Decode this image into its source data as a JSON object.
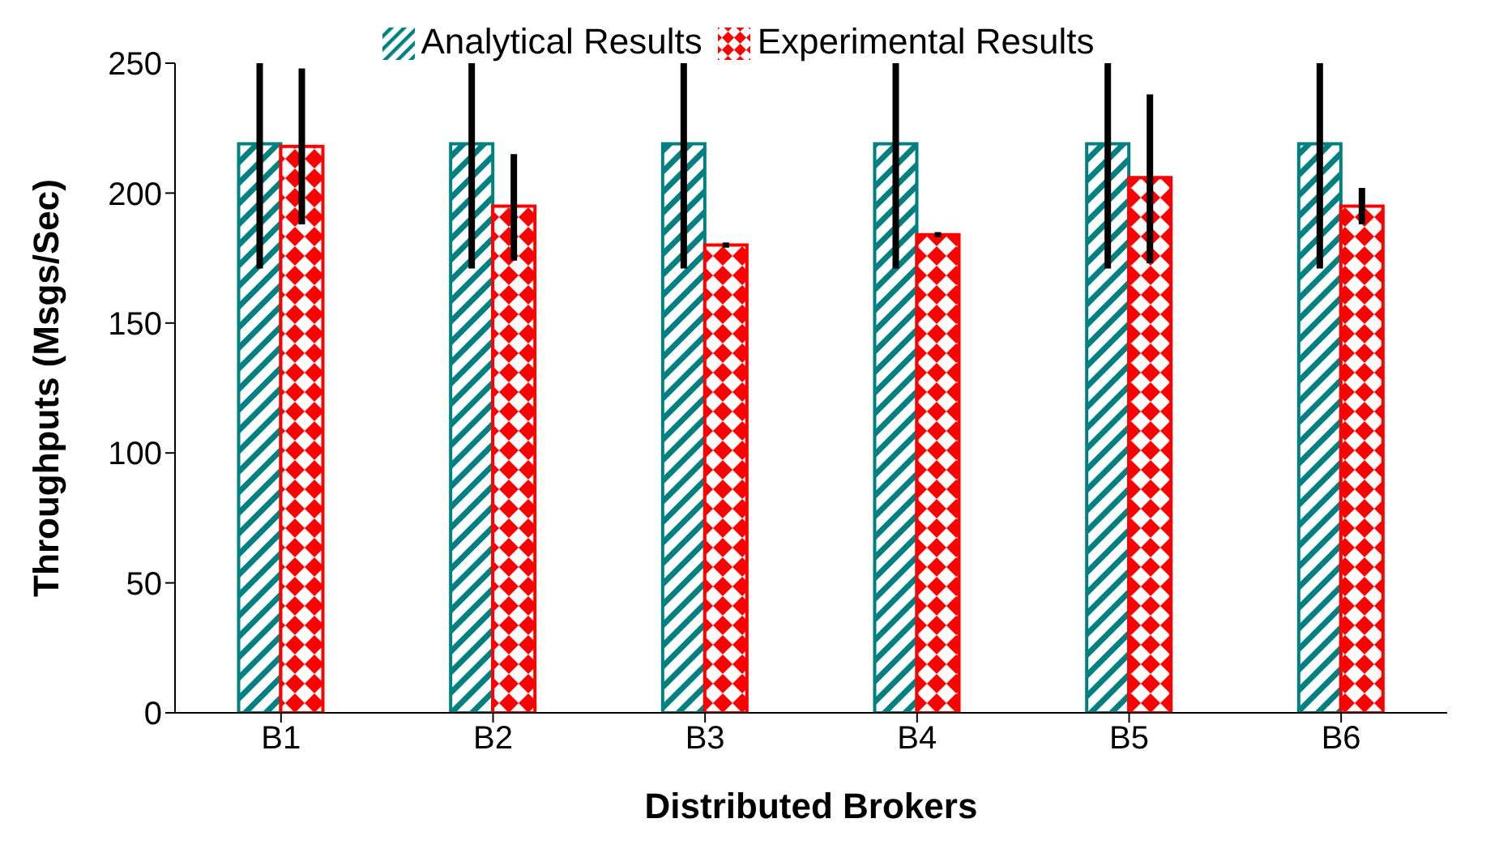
{
  "chart_data": {
    "type": "bar",
    "xlabel": "Distributed Brokers",
    "ylabel": "Throughputs (Msgs/Sec)",
    "categories": [
      "B1",
      "B2",
      "B3",
      "B4",
      "B5",
      "B6"
    ],
    "series": [
      {
        "name": "Analytical Results",
        "color": "#008080",
        "values": [
          219,
          219,
          219,
          219,
          219,
          219
        ],
        "errors": [
          [
            171,
            250
          ],
          [
            171,
            250
          ],
          [
            171,
            250
          ],
          [
            171,
            250
          ],
          [
            171,
            250
          ],
          [
            171,
            250
          ]
        ]
      },
      {
        "name": "Experimental Results",
        "color": "#ff0000",
        "values": [
          218,
          195,
          180,
          184,
          206,
          195
        ],
        "errors": [
          [
            188,
            248
          ],
          [
            174,
            215
          ],
          [
            179,
            181
          ],
          [
            183,
            185
          ],
          [
            173,
            238
          ],
          [
            188,
            202
          ]
        ]
      }
    ],
    "ylim": [
      0,
      250
    ],
    "yticks": [
      0,
      50,
      100,
      150,
      200,
      250
    ],
    "legend": "top",
    "grid": false
  }
}
